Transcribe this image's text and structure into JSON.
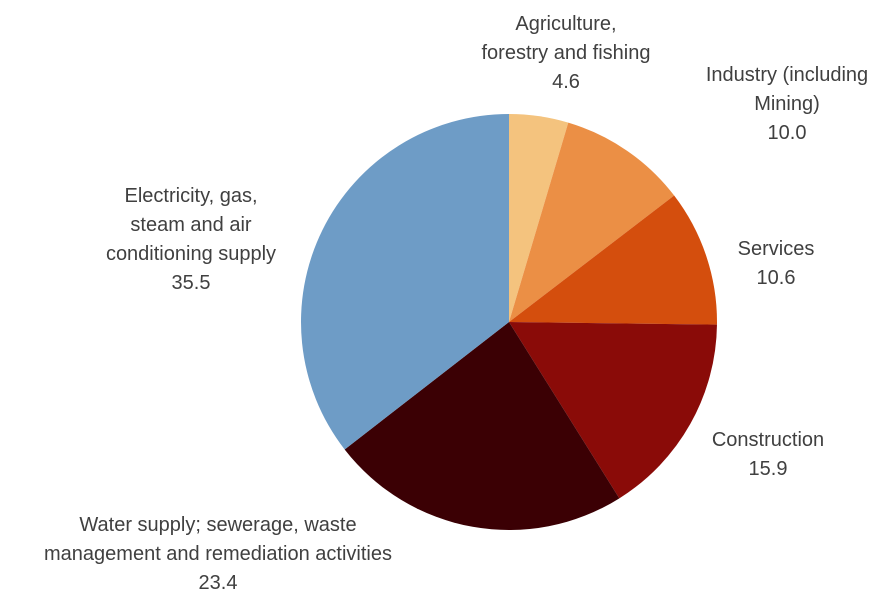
{
  "chart_data": {
    "type": "pie",
    "start_angle_deg": 0,
    "direction": "clockwise",
    "slices": [
      {
        "label_lines": [
          "Agriculture,",
          "forestry and fishing"
        ],
        "value": 4.6,
        "value_text": "4.6",
        "color": "#F4C37E"
      },
      {
        "label_lines": [
          "Industry (including",
          "Mining)"
        ],
        "value": 10.0,
        "value_text": "10.0",
        "color": "#EB8F45"
      },
      {
        "label_lines": [
          "Services"
        ],
        "value": 10.6,
        "value_text": "10.6",
        "color": "#D44E0D"
      },
      {
        "label_lines": [
          "Construction"
        ],
        "value": 15.9,
        "value_text": "15.9",
        "color": "#8A0B08"
      },
      {
        "label_lines": [
          "Water supply; sewerage, waste",
          "management and remediation activities"
        ],
        "value": 23.4,
        "value_text": "23.4",
        "color": "#3B0004"
      },
      {
        "label_lines": [
          "Electricity, gas,",
          "steam and air",
          "conditioning supply"
        ],
        "value": 35.5,
        "value_text": "35.5",
        "color": "#6E9CC6"
      }
    ]
  }
}
